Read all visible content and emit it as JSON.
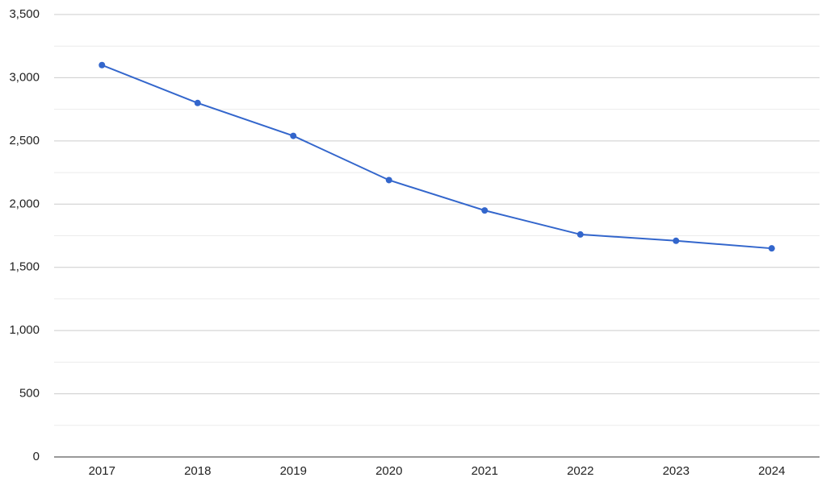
{
  "chart_data": {
    "type": "line",
    "categories": [
      "2017",
      "2018",
      "2019",
      "2020",
      "2021",
      "2022",
      "2023",
      "2024"
    ],
    "series": [
      {
        "color": "#3366cc",
        "values": [
          3100,
          2800,
          2540,
          2190,
          1950,
          1760,
          1710,
          1650
        ]
      }
    ],
    "ylim": [
      0,
      3500
    ],
    "yticks": [
      0,
      500,
      {
        "value": 1000,
        "label": "1,000"
      },
      {
        "value": 1500,
        "label": "1,500"
      },
      {
        "value": 2000,
        "label": "2,000"
      },
      {
        "value": 2500,
        "label": "2,500"
      },
      {
        "value": 3000,
        "label": "3,000"
      },
      {
        "value": 3500,
        "label": "3,500"
      }
    ],
    "minor_yticks": [
      250,
      750,
      1250,
      1750,
      2250,
      2750,
      3250
    ],
    "grid": true
  }
}
